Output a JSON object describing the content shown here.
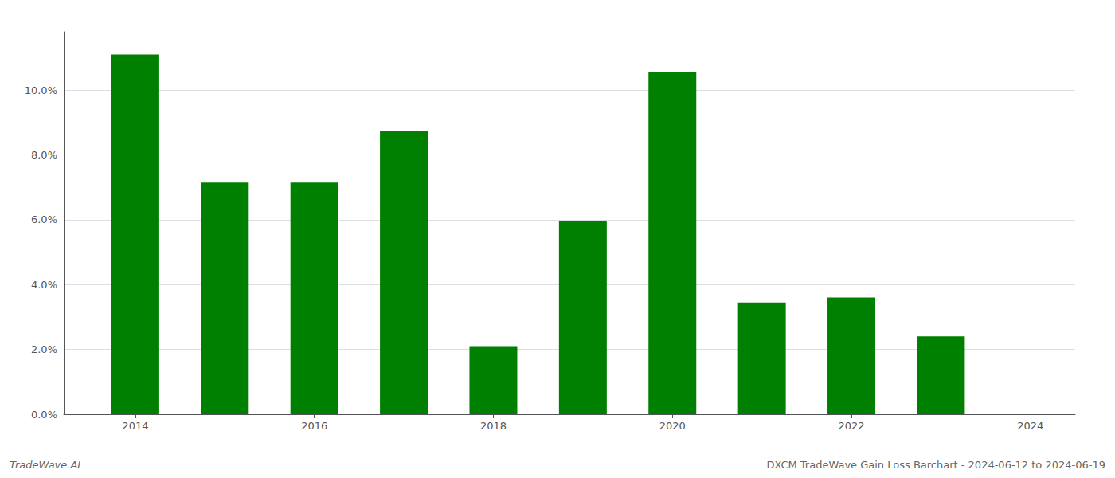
{
  "chart_data": {
    "type": "bar",
    "x": [
      2014,
      2015,
      2016,
      2017,
      2018,
      2019,
      2020,
      2021,
      2022,
      2023
    ],
    "values": [
      0.111,
      0.0715,
      0.0715,
      0.0875,
      0.021,
      0.0595,
      0.1055,
      0.0345,
      0.036,
      0.024
    ],
    "color": "#008000",
    "xlim": [
      2013.2,
      2024.5
    ],
    "xticks": [
      2014,
      2016,
      2018,
      2020,
      2022,
      2024
    ],
    "ylim": [
      0,
      0.118
    ],
    "yticks": [
      {
        "value": 0.0,
        "label": "0.0%"
      },
      {
        "value": 0.02,
        "label": "2.0%"
      },
      {
        "value": 0.04,
        "label": "4.0%"
      },
      {
        "value": 0.06,
        "label": "6.0%"
      },
      {
        "value": 0.08,
        "label": "8.0%"
      },
      {
        "value": 0.1,
        "label": "10.0%"
      }
    ],
    "grid": true,
    "annotations": [
      "TradeWave.AI",
      "DXCM TradeWave Gain Loss Barchart - 2024-06-12 to 2024-06-19"
    ]
  }
}
